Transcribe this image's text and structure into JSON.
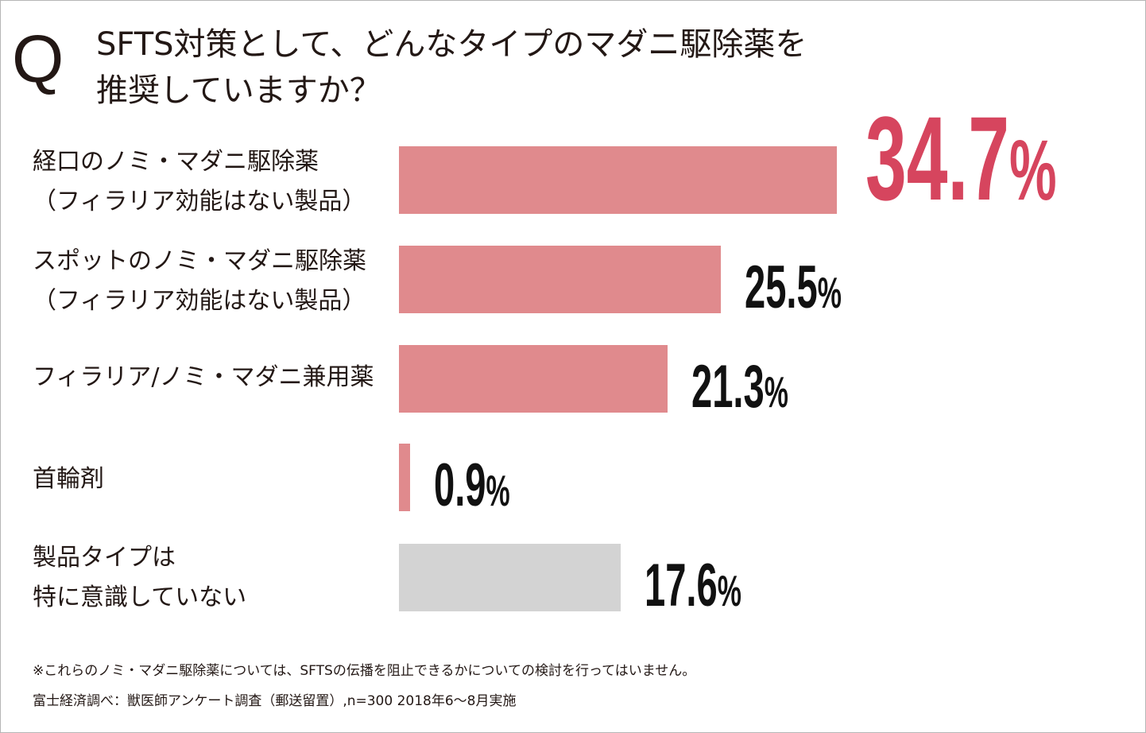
{
  "question": {
    "mark": "Q",
    "line1": "SFTS対策として、どんなタイプのマダニ駆除薬を",
    "line2": "推奨していますか？"
  },
  "chart_data": {
    "type": "bar",
    "orientation": "horizontal",
    "unit": "%",
    "xlim": [
      0,
      34.7
    ],
    "categories": [
      {
        "line1": "経口のノミ・マダニ駆除薬",
        "line2": "（フィラリア効能はない製品）"
      },
      {
        "line1": "スポットのノミ・マダニ駆除薬",
        "line2": "（フィラリア効能はない製品）"
      },
      {
        "line1": "フィラリア/ノミ・マダニ兼用薬",
        "line2": ""
      },
      {
        "line1": "首輪剤",
        "line2": ""
      },
      {
        "line1": "製品タイプは",
        "line2": "特に意識していない"
      }
    ],
    "values": [
      34.7,
      25.5,
      21.3,
      0.9,
      17.6
    ],
    "value_labels": [
      "34.7",
      "25.5",
      "21.3",
      "0.9",
      "17.6"
    ],
    "percent_sign": "%",
    "bar_colors": [
      "#e08a8d",
      "#e08a8d",
      "#e08a8d",
      "#e08a8d",
      "#d3d3d3"
    ],
    "highlight_label_color": "#d6455e",
    "label_color": "#111111"
  },
  "footnotes": {
    "note": "※これらのノミ・マダニ駆除薬については、SFTSの伝播を阻止できるかについての検討を行ってはいません。",
    "source": "富士経済調べ：獣医師アンケート調査（郵送留置）,n=300 2018年6〜8月実施"
  }
}
